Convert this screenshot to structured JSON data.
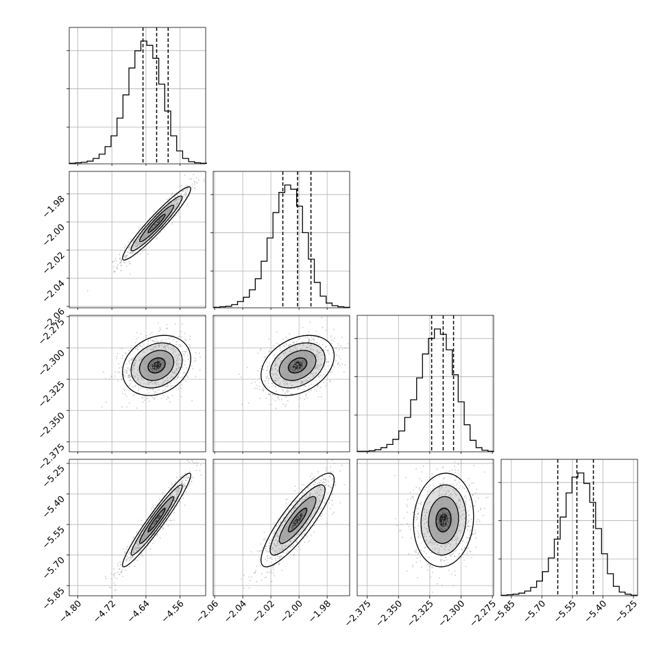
{
  "figure": {
    "type": "corner-plot",
    "background": "#ffffff",
    "grid": true
  },
  "colors": {
    "line": "#000000",
    "grid": "#b0b0b0",
    "scatter": "#9a9a9a",
    "panel_border": "#000000"
  },
  "chart_data": {
    "type": "corner",
    "parameters": [
      {
        "range": [
          -4.82,
          -4.5
        ],
        "ticks": [
          -4.8,
          -4.72,
          -4.64,
          -4.56
        ],
        "tick_labels": [
          "−4.80",
          "−4.72",
          "−4.64",
          "−4.56"
        ],
        "quantiles": [
          -4.647,
          -4.615,
          -4.588
        ],
        "histogram": {
          "bin_edges": [
            -4.82,
            -4.806,
            -4.792,
            -4.778,
            -4.764,
            -4.75,
            -4.736,
            -4.722,
            -4.708,
            -4.694,
            -4.68,
            -4.666,
            -4.652,
            -4.638,
            -4.624,
            -4.61,
            -4.596,
            -4.582,
            -4.568,
            -4.554,
            -4.54,
            -4.526,
            -4.512,
            -4.498
          ],
          "counts": [
            1,
            2,
            3,
            5,
            10,
            18,
            32,
            52,
            85,
            128,
            178,
            210,
            228,
            220,
            196,
            148,
            98,
            52,
            24,
            10,
            4,
            2,
            1
          ]
        }
      },
      {
        "range": [
          -2.061,
          -1.964
        ],
        "ticks": [
          -2.06,
          -2.04,
          -2.02,
          -2.0,
          -1.98
        ],
        "tick_labels": [
          "−2.06",
          "−2.04",
          "−2.02",
          "−2.00",
          "−1.98"
        ],
        "quantiles": [
          -2.0115,
          -2.001,
          -1.9915
        ],
        "histogram": {
          "bin_edges": [
            -2.0605,
            -2.0563,
            -2.0521,
            -2.0479,
            -2.0437,
            -2.0395,
            -2.0353,
            -2.0311,
            -2.0269,
            -2.0227,
            -2.0185,
            -2.0143,
            -2.0101,
            -2.0059,
            -2.0017,
            -1.9975,
            -1.9933,
            -1.9891,
            -1.9849,
            -1.9807,
            -1.9765,
            -1.9723,
            -1.9681,
            -1.9639
          ],
          "counts": [
            1,
            2,
            3,
            6,
            12,
            20,
            34,
            55,
            88,
            132,
            180,
            218,
            232,
            224,
            192,
            142,
            92,
            48,
            22,
            9,
            4,
            2,
            1
          ]
        }
      },
      {
        "range": [
          -2.383,
          -2.274
        ],
        "ticks": [
          -2.375,
          -2.35,
          -2.325,
          -2.3,
          -2.275
        ],
        "tick_labels": [
          "−2.375",
          "−2.350",
          "−2.325",
          "−2.300",
          "−2.275"
        ],
        "quantiles": [
          -2.3235,
          -2.3143,
          -2.306
        ],
        "histogram": {
          "bin_edges": [
            -2.383,
            -2.3783,
            -2.3735,
            -2.3688,
            -2.364,
            -2.3593,
            -2.3545,
            -2.3498,
            -2.345,
            -2.3403,
            -2.3355,
            -2.3308,
            -2.326,
            -2.3213,
            -2.3165,
            -2.3118,
            -2.307,
            -2.3023,
            -2.2975,
            -2.2928,
            -2.288,
            -2.2833,
            -2.2785,
            -2.274
          ],
          "counts": [
            1,
            1,
            2,
            4,
            8,
            14,
            24,
            40,
            66,
            100,
            142,
            188,
            218,
            236,
            226,
            196,
            148,
            96,
            52,
            22,
            8,
            3,
            1
          ]
        }
      },
      {
        "range": [
          -5.9,
          -5.23
        ],
        "ticks": [
          -5.85,
          -5.7,
          -5.55,
          -5.4,
          -5.25
        ],
        "tick_labels": [
          "−5.85",
          "−5.70",
          "−5.55",
          "−5.40",
          "−5.25"
        ],
        "quantiles": [
          -5.622,
          -5.528,
          -5.447
        ],
        "histogram": {
          "bin_edges": [
            -5.9,
            -5.871,
            -5.842,
            -5.813,
            -5.784,
            -5.755,
            -5.726,
            -5.697,
            -5.668,
            -5.639,
            -5.61,
            -5.581,
            -5.552,
            -5.523,
            -5.494,
            -5.465,
            -5.436,
            -5.407,
            -5.378,
            -5.349,
            -5.32,
            -5.291,
            -5.262,
            -5.233
          ],
          "counts": [
            1,
            2,
            3,
            5,
            9,
            16,
            28,
            46,
            72,
            108,
            150,
            196,
            226,
            234,
            214,
            178,
            128,
            80,
            42,
            18,
            7,
            3,
            1
          ]
        }
      }
    ],
    "pairs": [
      {
        "x": 0,
        "y": 1,
        "center": [
          -4.615,
          -2.001
        ],
        "sigma": [
          0.04,
          0.013
        ],
        "rho": 0.95
      },
      {
        "x": 0,
        "y": 2,
        "center": [
          -4.615,
          -2.314
        ],
        "sigma": [
          0.04,
          0.012
        ],
        "rho": 0.22
      },
      {
        "x": 1,
        "y": 2,
        "center": [
          -2.001,
          -2.314
        ],
        "sigma": [
          0.013,
          0.012
        ],
        "rho": 0.32
      },
      {
        "x": 0,
        "y": 3,
        "center": [
          -4.615,
          -5.528
        ],
        "sigma": [
          0.04,
          0.115
        ],
        "rho": 0.96
      },
      {
        "x": 1,
        "y": 3,
        "center": [
          -2.001,
          -5.528
        ],
        "sigma": [
          0.013,
          0.115
        ],
        "rho": 0.86
      },
      {
        "x": 2,
        "y": 3,
        "center": [
          -2.314,
          -5.528
        ],
        "sigma": [
          0.012,
          0.115
        ],
        "rho": 0.08
      }
    ],
    "contour_levels_sigma": [
      0.5,
      1.0,
      1.5,
      2.0
    ]
  }
}
